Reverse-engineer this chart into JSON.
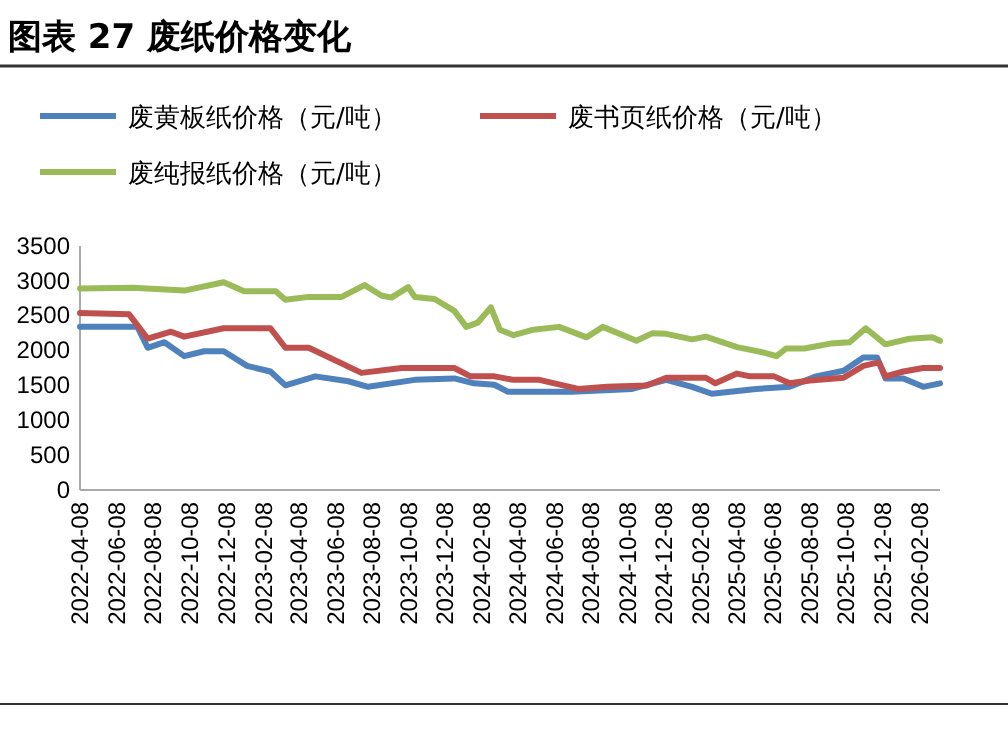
{
  "chart_data": {
    "type": "line",
    "title": "图表 27 废纸价格变化",
    "legend": "top",
    "grid": false,
    "line_style": "solid",
    "marker": "none",
    "xlim": [
      "2022-04-08",
      "2026-03-14"
    ],
    "xticks": [
      "2022-04-08",
      "2022-06-08",
      "2022-08-08",
      "2022-10-08",
      "2022-12-08",
      "2023-02-08",
      "2023-04-08",
      "2023-06-08",
      "2023-08-08",
      "2023-10-08",
      "2023-12-08",
      "2024-02-08",
      "2024-04-08",
      "2024-06-08",
      "2024-08-08",
      "2024-10-08",
      "2024-12-08",
      "2025-02-08",
      "2025-04-08",
      "2025-06-08",
      "2025-08-08",
      "2025-10-08",
      "2025-12-08",
      "2026-02-08"
    ],
    "ylim": [
      0,
      3500
    ],
    "yticks": [
      0,
      500,
      1000,
      1500,
      2000,
      2500,
      3000,
      3500
    ],
    "series": [
      {
        "name": "废黄板纸价格（元/吨）",
        "color": "#4f81bd",
        "x": [
          "2022-04-08",
          "2022-07-13",
          "2022-07-30",
          "2022-08-27",
          "2022-09-29",
          "2022-11-01",
          "2022-12-04",
          "2023-01-12",
          "2023-02-20",
          "2023-03-17",
          "2023-05-06",
          "2023-06-30",
          "2023-08-02",
          "2023-10-19",
          "2023-12-24",
          "2024-01-26",
          "2024-02-29",
          "2024-03-22",
          "2024-05-14",
          "2024-07-08",
          "2024-10-16",
          "2024-12-12",
          "2025-01-24",
          "2025-02-26",
          "2025-05-11",
          "2025-07-06",
          "2025-08-19",
          "2025-10-04",
          "2025-11-06",
          "2025-11-29",
          "2025-12-13",
          "2026-01-12",
          "2026-02-14",
          "2026-03-14"
        ],
        "values": [
          2340,
          2340,
          2040,
          2120,
          1920,
          1990,
          1990,
          1780,
          1700,
          1500,
          1630,
          1560,
          1480,
          1580,
          1600,
          1530,
          1510,
          1410,
          1410,
          1410,
          1450,
          1580,
          1480,
          1380,
          1450,
          1480,
          1630,
          1710,
          1900,
          1900,
          1600,
          1600,
          1480,
          1530
        ]
      },
      {
        "name": "废书页纸价格（元/吨）",
        "color": "#c0504d",
        "x": [
          "2022-04-08",
          "2022-06-29",
          "2022-07-30",
          "2022-09-07",
          "2022-09-29",
          "2022-12-04",
          "2023-02-20",
          "2023-03-17",
          "2023-04-25",
          "2023-07-22",
          "2023-09-27",
          "2023-12-24",
          "2024-01-20",
          "2024-02-29",
          "2024-04-01",
          "2024-05-14",
          "2024-07-18",
          "2024-09-04",
          "2024-11-09",
          "2024-12-12",
          "2025-02-16",
          "2025-03-04",
          "2025-04-09",
          "2025-05-01",
          "2025-06-10",
          "2025-07-06",
          "2025-08-09",
          "2025-10-04",
          "2025-11-06",
          "2025-12-02",
          "2025-12-13",
          "2026-01-12",
          "2026-02-14",
          "2026-03-14"
        ],
        "values": [
          2540,
          2520,
          2170,
          2270,
          2200,
          2320,
          2320,
          2040,
          2040,
          1680,
          1750,
          1750,
          1630,
          1630,
          1580,
          1580,
          1450,
          1480,
          1500,
          1610,
          1610,
          1530,
          1670,
          1630,
          1630,
          1530,
          1570,
          1610,
          1780,
          1830,
          1630,
          1700,
          1750,
          1750
        ]
      },
      {
        "name": "废纯报纸价格（元/吨）",
        "color": "#9bbb59",
        "x": [
          "2022-04-08",
          "2022-07-05",
          "2022-09-29",
          "2022-12-04",
          "2023-01-07",
          "2023-03-01",
          "2023-03-17",
          "2023-04-25",
          "2023-06-19",
          "2023-07-27",
          "2023-08-24",
          "2023-09-10",
          "2023-10-08",
          "2023-10-19",
          "2023-11-21",
          "2023-12-24",
          "2024-01-13",
          "2024-02-01",
          "2024-02-23",
          "2024-03-09",
          "2024-04-01",
          "2024-05-04",
          "2024-06-16",
          "2024-08-01",
          "2024-08-28",
          "2024-10-23",
          "2024-11-19",
          "2024-12-12",
          "2025-01-24",
          "2025-02-16",
          "2025-04-09",
          "2025-05-24",
          "2025-06-14",
          "2025-06-30",
          "2025-07-30",
          "2025-09-12",
          "2025-10-14",
          "2025-11-10",
          "2025-12-13",
          "2026-01-22",
          "2026-03-01",
          "2026-03-14"
        ],
        "values": [
          2890,
          2900,
          2860,
          2980,
          2850,
          2850,
          2730,
          2770,
          2770,
          2940,
          2790,
          2760,
          2910,
          2770,
          2740,
          2570,
          2340,
          2400,
          2620,
          2300,
          2220,
          2300,
          2340,
          2190,
          2340,
          2140,
          2250,
          2240,
          2160,
          2200,
          2050,
          1970,
          1920,
          2030,
          2030,
          2100,
          2120,
          2320,
          2090,
          2170,
          2190,
          2140
        ]
      }
    ]
  }
}
